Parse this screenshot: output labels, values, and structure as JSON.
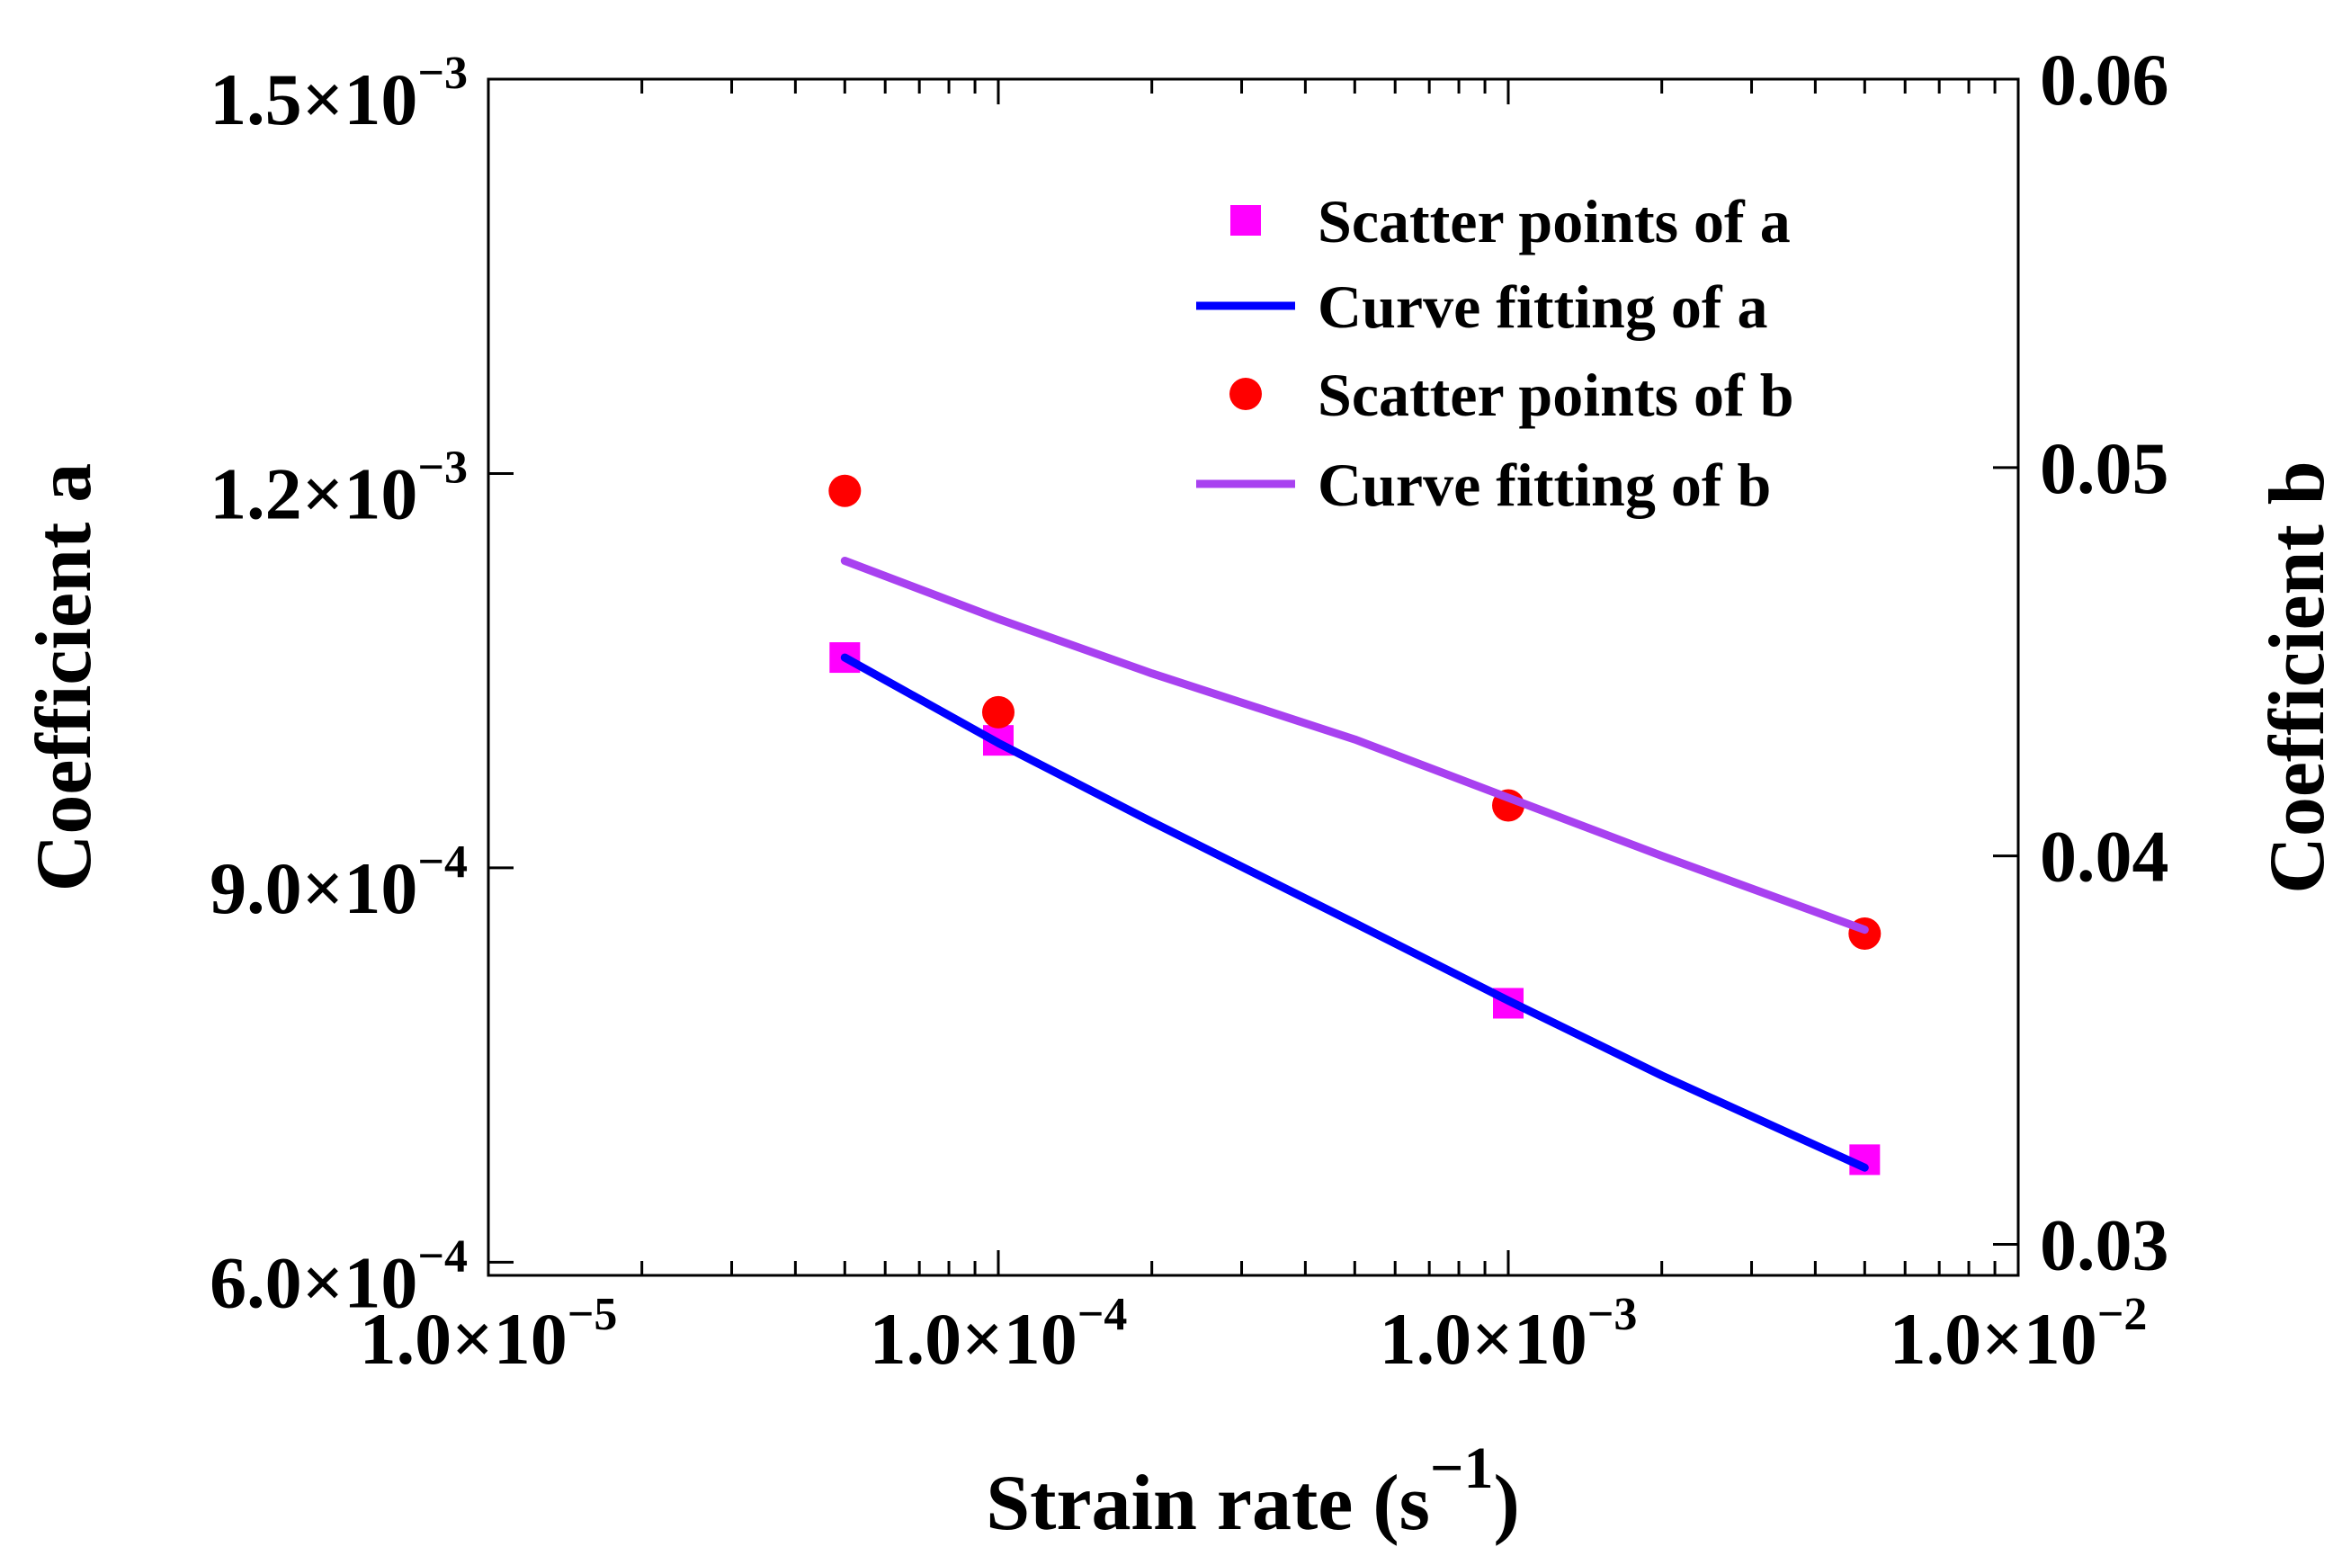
{
  "chart_data": {
    "type": "scatter",
    "title": "",
    "xlabel": "Strain rate (s",
    "xlabel_sup": "−1",
    "xlabel_close": ")",
    "ylabel_left": "Coefficient a",
    "ylabel_right": "Coefficient b",
    "x_scale": "log",
    "xlim": [
      1e-05,
      0.01
    ],
    "ylim_left": [
      0.00059,
      0.0015
    ],
    "ylim_right": [
      0.0292,
      0.06
    ],
    "x_ticks": [
      {
        "value": 1e-05,
        "mantissa": "1.0×10",
        "exp": "−5"
      },
      {
        "value": 0.0001,
        "mantissa": "1.0×10",
        "exp": "−4"
      },
      {
        "value": 0.001,
        "mantissa": "1.0×10",
        "exp": "−3"
      },
      {
        "value": 0.01,
        "mantissa": "1.0×10",
        "exp": "−2"
      }
    ],
    "y_left_ticks": [
      {
        "value": 0.0006,
        "mantissa": "6.0×10",
        "exp": "−4"
      },
      {
        "value": 0.0009,
        "mantissa": "9.0×10",
        "exp": "−4"
      },
      {
        "value": 0.0012,
        "mantissa": "1.2×10",
        "exp": "−3"
      },
      {
        "value": 0.0015,
        "mantissa": "1.5×10",
        "exp": "−3"
      }
    ],
    "y_right_ticks": [
      {
        "value": 0.03,
        "label": "0.03"
      },
      {
        "value": 0.04,
        "label": "0.04"
      },
      {
        "value": 0.05,
        "label": "0.05"
      },
      {
        "value": 0.06,
        "label": "0.06"
      }
    ],
    "series": [
      {
        "name": "Scatter points of a",
        "kind": "scatter",
        "marker": "square",
        "axis": "left",
        "color": "#ff00ff",
        "x": [
          5e-05,
          0.0001,
          0.001,
          0.005
        ],
        "y": [
          0.00106,
          0.000997,
          0.000797,
          0.000678
        ]
      },
      {
        "name": "Curve fitting of a",
        "kind": "line",
        "axis": "left",
        "color": "#0000ff",
        "x": [
          5e-05,
          0.0001,
          0.0002,
          0.0005,
          0.001,
          0.002,
          0.005
        ],
        "y": [
          0.00106,
          0.000995,
          0.000935,
          0.000858,
          0.000799,
          0.000742,
          0.000672
        ]
      },
      {
        "name": "Scatter points of b",
        "kind": "scatter",
        "marker": "circle",
        "axis": "right",
        "color": "#ff0000",
        "x": [
          5e-05,
          0.0001,
          0.001,
          0.005
        ],
        "y": [
          0.0494,
          0.0437,
          0.0413,
          0.038
        ]
      },
      {
        "name": "Curve fitting of b",
        "kind": "line",
        "axis": "right",
        "color": "#a841f0",
        "x": [
          5e-05,
          0.0001,
          0.0002,
          0.0005,
          0.001,
          0.002,
          0.005
        ],
        "y": [
          0.0476,
          0.0461,
          0.0447,
          0.043,
          0.0415,
          0.04,
          0.0381
        ]
      }
    ],
    "legend_position": "top-right",
    "grid": false
  }
}
